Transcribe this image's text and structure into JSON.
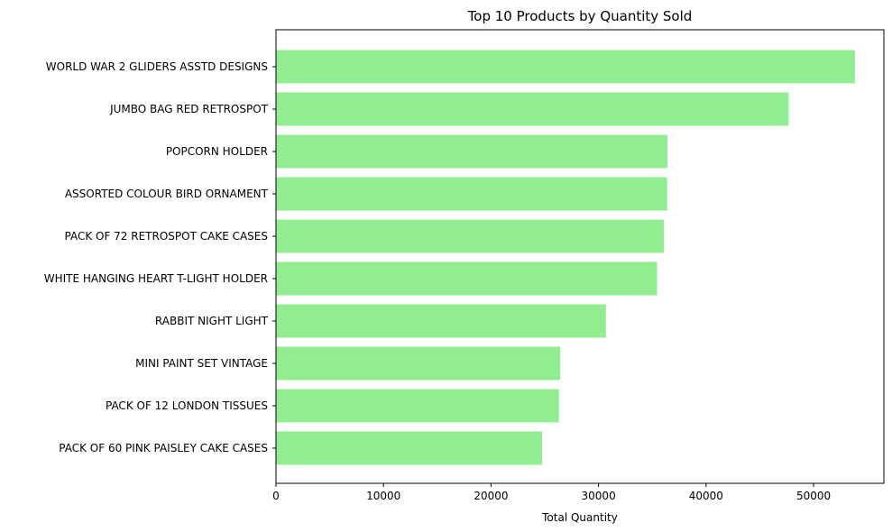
{
  "chart_data": {
    "type": "bar",
    "orientation": "horizontal",
    "title": "Top 10 Products by Quantity Sold",
    "xlabel": "Total Quantity",
    "ylabel": "",
    "categories": [
      "WORLD WAR 2 GLIDERS ASSTD DESIGNS",
      "JUMBO BAG RED RETROSPOT",
      "POPCORN HOLDER",
      "ASSORTED COLOUR BIRD ORNAMENT",
      "PACK OF 72 RETROSPOT CAKE CASES",
      "WHITE HANGING HEART T-LIGHT HOLDER",
      "RABBIT NIGHT LIGHT",
      "MINI PAINT SET VINTAGE ",
      "PACK OF 12 LONDON TISSUES ",
      "PACK OF 60 PINK PAISLEY CAKE CASES"
    ],
    "values": [
      53847,
      47675,
      36411,
      36381,
      36100,
      35447,
      30680,
      26437,
      26315,
      24753
    ],
    "xticks": [
      0,
      10000,
      20000,
      30000,
      40000,
      50000
    ],
    "xtick_labels": [
      "0",
      "10000",
      "20000",
      "30000",
      "40000",
      "50000"
    ],
    "xlim": [
      0,
      56539
    ],
    "grid": false,
    "bar_color": "#90EE90"
  }
}
